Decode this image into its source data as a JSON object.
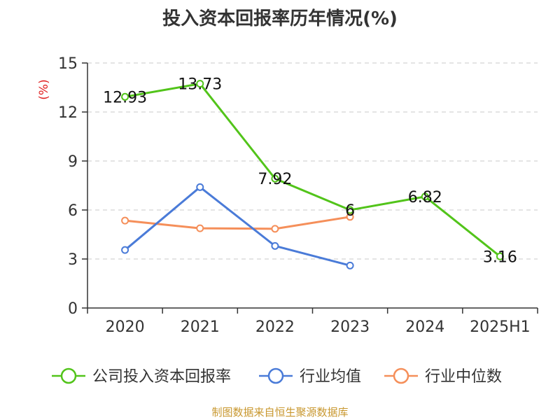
{
  "chart_data": {
    "type": "line",
    "title": "投入资本回报率历年情况(%)",
    "ylabel": "(%)",
    "xlabel": "",
    "categories": [
      "2020",
      "2021",
      "2022",
      "2023",
      "2024",
      "2025H1"
    ],
    "ylim": [
      0,
      15
    ],
    "yticks": [
      0,
      3,
      6,
      9,
      12,
      15
    ],
    "grid": true,
    "legend_position": "bottom",
    "series": [
      {
        "name": "公司投入资本回报率",
        "color": "#52c41a",
        "values": [
          12.93,
          13.73,
          7.92,
          6,
          6.82,
          3.16
        ],
        "labels": [
          "12.93",
          "13.73",
          "7.92",
          "6",
          "6.82",
          "3.16"
        ]
      },
      {
        "name": "行业均值",
        "color": "#4a7bd8",
        "values": [
          3.55,
          7.4,
          3.8,
          2.6,
          null,
          null
        ],
        "labels": null
      },
      {
        "name": "行业中位数",
        "color": "#f58f5a",
        "values": [
          5.35,
          4.88,
          4.85,
          5.58,
          null,
          null
        ],
        "labels": null
      }
    ]
  },
  "source": "制图数据来自恒生聚源数据库"
}
